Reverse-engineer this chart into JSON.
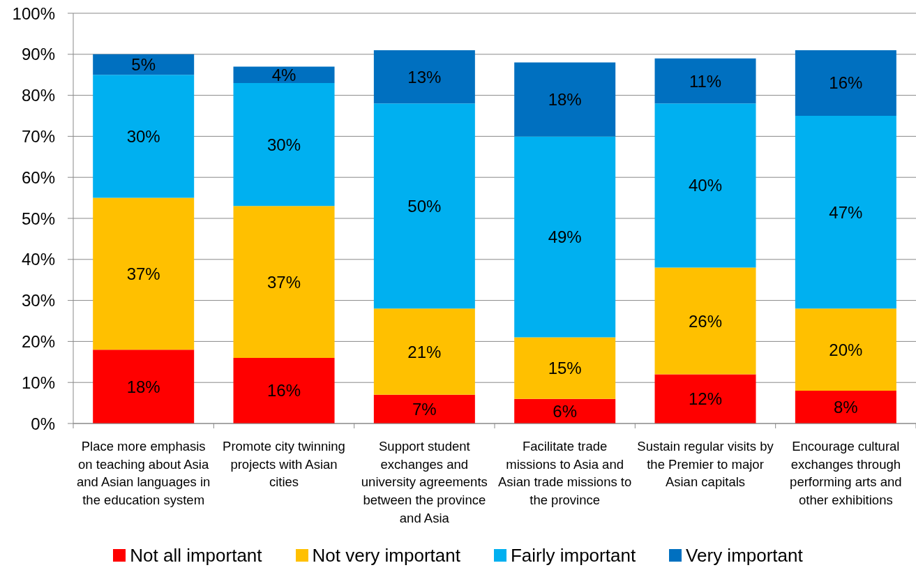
{
  "chart_data": {
    "type": "bar",
    "stacked": true,
    "categories": [
      "Place more emphasis on teaching about Asia and Asian languages in the education system",
      "Promote city twinning projects with Asian cities",
      "Support student exchanges and university agreements between the province and Asia",
      "Facilitate trade missions to Asia and Asian trade missions to the province",
      "Sustain regular visits by the Premier to major Asian capitals",
      "Encourage cultural exchanges through performing arts and other exhibitions"
    ],
    "series": [
      {
        "name": "Not all important",
        "color": "#ff0000",
        "values": [
          18,
          16,
          7,
          6,
          12,
          8
        ],
        "value_labels": [
          "18%",
          "16%",
          "7%",
          "6%",
          "12%",
          "8%"
        ]
      },
      {
        "name": "Not very important",
        "color": "#ffc000",
        "values": [
          37,
          37,
          21,
          15,
          26,
          20
        ],
        "value_labels": [
          "37%",
          "37%",
          "21%",
          "15%",
          "26%",
          "20%"
        ]
      },
      {
        "name": "Fairly important",
        "color": "#00b0f0",
        "values": [
          30,
          30,
          50,
          49,
          40,
          47
        ],
        "value_labels": [
          "30%",
          "30%",
          "50%",
          "49%",
          "40%",
          "47%"
        ]
      },
      {
        "name": "Very important",
        "color": "#0070c0",
        "values": [
          5,
          4,
          13,
          18,
          11,
          16
        ],
        "value_labels": [
          "5%",
          "4%",
          "13%",
          "18%",
          "11%",
          "16%"
        ]
      }
    ],
    "ylim": [
      0,
      100
    ],
    "yticks": [
      {
        "value": 0,
        "label": "0%"
      },
      {
        "value": 10,
        "label": "10%"
      },
      {
        "value": 20,
        "label": "20%"
      },
      {
        "value": 30,
        "label": "30%"
      },
      {
        "value": 40,
        "label": "40%"
      },
      {
        "value": 50,
        "label": "50%"
      },
      {
        "value": 60,
        "label": "60%"
      },
      {
        "value": 70,
        "label": "70%"
      },
      {
        "value": 80,
        "label": "80%"
      },
      {
        "value": 90,
        "label": "90%"
      },
      {
        "value": 100,
        "label": "100%"
      }
    ],
    "grid": "y",
    "legend": "bottom"
  }
}
